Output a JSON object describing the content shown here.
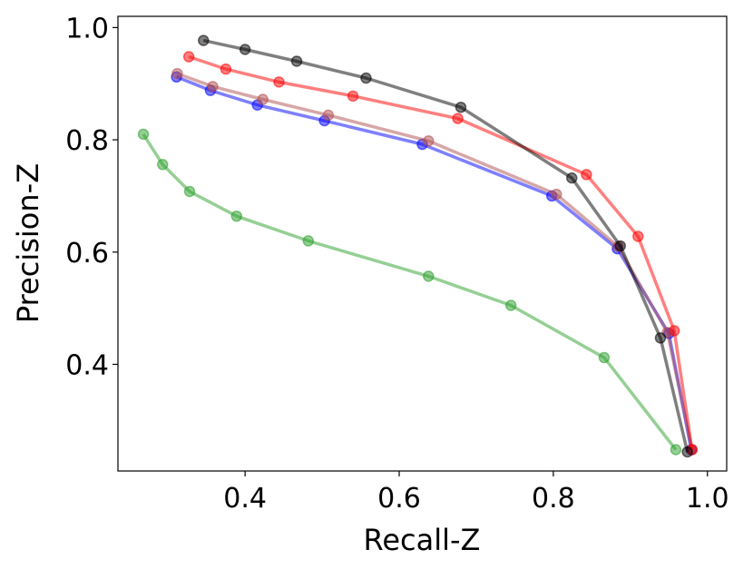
{
  "chart_data": {
    "type": "line",
    "title": "",
    "xlabel": "Recall-Z",
    "ylabel": "Precision-Z",
    "xlim": [
      0.235,
      1.025
    ],
    "ylim": [
      0.21,
      1.02
    ],
    "xticks": [
      0.4,
      0.6,
      0.8,
      1.0
    ],
    "xtick_labels": [
      "0.4",
      "0.6",
      "0.8",
      "1.0"
    ],
    "yticks": [
      0.4,
      0.6,
      0.8,
      1.0
    ],
    "ytick_labels": [
      "0.4",
      "0.6",
      "0.8",
      "1.0"
    ],
    "grid": false,
    "legend": "none",
    "series": [
      {
        "name": "green",
        "color": "#2ca02c",
        "x": [
          0.268,
          0.293,
          0.328,
          0.389,
          0.482,
          0.638,
          0.745,
          0.866,
          0.959
        ],
        "y": [
          0.81,
          0.756,
          0.708,
          0.664,
          0.62,
          0.557,
          0.505,
          0.412,
          0.248
        ]
      },
      {
        "name": "blue",
        "color": "#0000ff",
        "x": [
          0.311,
          0.355,
          0.416,
          0.503,
          0.63,
          0.798,
          0.883,
          0.95,
          0.979
        ],
        "y": [
          0.912,
          0.888,
          0.862,
          0.834,
          0.792,
          0.7,
          0.606,
          0.455,
          0.248
        ]
      },
      {
        "name": "brown",
        "color": "#b05050",
        "x": [
          0.312,
          0.358,
          0.423,
          0.508,
          0.638,
          0.804,
          0.884,
          0.948,
          0.98
        ],
        "y": [
          0.918,
          0.895,
          0.872,
          0.844,
          0.798,
          0.703,
          0.61,
          0.457,
          0.248
        ]
      },
      {
        "name": "red",
        "color": "#ff0000",
        "x": [
          0.327,
          0.375,
          0.444,
          0.54,
          0.676,
          0.843,
          0.91,
          0.957,
          0.98
        ],
        "y": [
          0.948,
          0.926,
          0.903,
          0.878,
          0.838,
          0.738,
          0.628,
          0.46,
          0.248
        ]
      },
      {
        "name": "black",
        "color": "#000000",
        "x": [
          0.346,
          0.4,
          0.467,
          0.557,
          0.68,
          0.824,
          0.887,
          0.939,
          0.974
        ],
        "y": [
          0.977,
          0.961,
          0.94,
          0.91,
          0.858,
          0.732,
          0.611,
          0.447,
          0.244
        ]
      }
    ]
  }
}
